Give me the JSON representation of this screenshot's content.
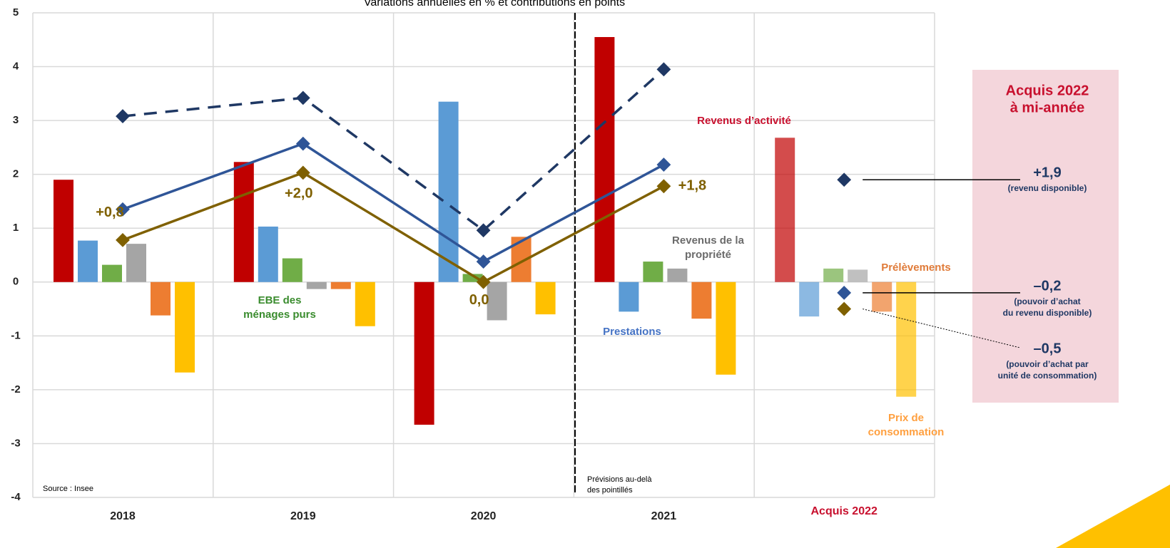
{
  "chart_data": {
    "type": "bar",
    "title": "Variations annuelles en % et contributions en points",
    "categories": [
      "2018",
      "2019",
      "2020",
      "2021",
      "Acquis 2022"
    ],
    "ylim": [
      -4,
      5
    ],
    "yticks": [
      -4,
      -3,
      -2,
      -1,
      0,
      1,
      2,
      3,
      4,
      5
    ],
    "grid": true,
    "series": [
      {
        "name": "Revenus d’activité",
        "color": "#c00000",
        "values": [
          1.9,
          2.23,
          -2.65,
          4.55,
          2.68
        ]
      },
      {
        "name": "Prestations",
        "color": "#5b9bd5",
        "values": [
          0.77,
          1.03,
          3.35,
          -0.55,
          -0.64
        ]
      },
      {
        "name": "EBE des ménages purs",
        "color": "#70ad47",
        "values": [
          0.32,
          0.44,
          0.15,
          0.38,
          0.25
        ]
      },
      {
        "name": "Revenus de la propriété",
        "color": "#a5a5a5",
        "values": [
          0.71,
          -0.13,
          -0.71,
          0.25,
          0.23
        ]
      },
      {
        "name": "Prélèvements",
        "color": "#ed7d31",
        "values": [
          -0.62,
          -0.13,
          0.84,
          -0.68,
          -0.55
        ]
      },
      {
        "name": "Prix de consommation",
        "color": "#ffc000",
        "values": [
          -1.68,
          -0.82,
          -0.6,
          -1.72,
          -2.13
        ]
      }
    ],
    "lines": [
      {
        "color": "#1f3864",
        "dashed": true,
        "values": [
          3.08,
          3.42,
          0.96,
          3.95
        ],
        "acquis": 1.9,
        "acquis_label": "+1,9",
        "acquis_note": [
          "(revenu disponible)"
        ]
      },
      {
        "color": "#2f5597",
        "dashed": false,
        "values": [
          1.35,
          2.57,
          0.38,
          2.18
        ],
        "acquis": -0.2,
        "acquis_label": "–0,2",
        "acquis_note": [
          "(pouvoir d’achat",
          "du revenu disponible)"
        ]
      },
      {
        "color": "#7f6000",
        "dashed": false,
        "values": [
          0.78,
          2.03,
          0.0,
          1.78
        ],
        "value_labels": [
          "+0,8",
          "+2,0",
          "0,0",
          "+1,8"
        ],
        "acquis": -0.5,
        "acquis_label": "–0,5",
        "acquis_note": [
          "(pouvoir d’achat par",
          "unité de consommation)"
        ]
      }
    ],
    "acquis_title": [
      "Acquis 2022",
      "à mi-année"
    ],
    "source": "Source : Insee",
    "forecast_note": [
      "Prévisions au-delà",
      "des pointillés"
    ]
  }
}
